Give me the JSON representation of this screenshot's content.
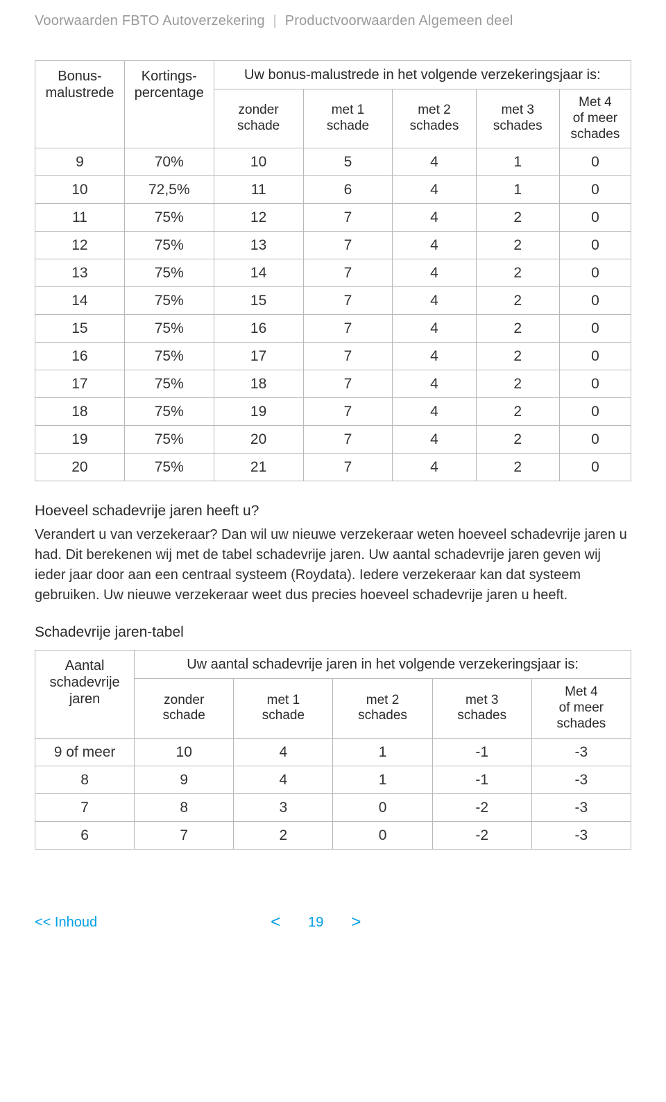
{
  "header": {
    "left": "Voorwaarden FBTO Autoverzekering",
    "right": "Productvoorwaarden Algemeen deel"
  },
  "table1": {
    "columns_row1": {
      "col1": "Bonus-\nmalustrede",
      "col2": "Kortings-\npercentage",
      "col_span": "Uw bonus-malustrede in het volgende verzekeringsjaar is:"
    },
    "columns_row2": {
      "c3": "zonder\nschade",
      "c4": "met 1\nschade",
      "c5": "met 2\nschades",
      "c6": "met 3\nschades",
      "c7": "Met 4\nof meer\nschades"
    },
    "rows": [
      [
        "9",
        "70%",
        "10",
        "5",
        "4",
        "1",
        "0"
      ],
      [
        "10",
        "72,5%",
        "11",
        "6",
        "4",
        "1",
        "0"
      ],
      [
        "11",
        "75%",
        "12",
        "7",
        "4",
        "2",
        "0"
      ],
      [
        "12",
        "75%",
        "13",
        "7",
        "4",
        "2",
        "0"
      ],
      [
        "13",
        "75%",
        "14",
        "7",
        "4",
        "2",
        "0"
      ],
      [
        "14",
        "75%",
        "15",
        "7",
        "4",
        "2",
        "0"
      ],
      [
        "15",
        "75%",
        "16",
        "7",
        "4",
        "2",
        "0"
      ],
      [
        "16",
        "75%",
        "17",
        "7",
        "4",
        "2",
        "0"
      ],
      [
        "17",
        "75%",
        "18",
        "7",
        "4",
        "2",
        "0"
      ],
      [
        "18",
        "75%",
        "19",
        "7",
        "4",
        "2",
        "0"
      ],
      [
        "19",
        "75%",
        "20",
        "7",
        "4",
        "2",
        "0"
      ],
      [
        "20",
        "75%",
        "21",
        "7",
        "4",
        "2",
        "0"
      ]
    ]
  },
  "section": {
    "heading": "Hoeveel schadevrije jaren heeft u?",
    "body": "Verandert u van verzekeraar? Dan wil uw nieuwe verzekeraar weten hoeveel schadevrije jaren u had. Dit berekenen wij met de tabel schadevrije jaren. Uw aantal schadevrije jaren geven wij ieder jaar door aan een centraal systeem (Roydata). Iedere verzekeraar kan dat systeem gebruiken. Uw nieuwe verzekeraar weet dus precies hoeveel schadevrije jaren u heeft."
  },
  "sub_heading": "Schadevrije jaren-tabel",
  "table2": {
    "columns_row1": {
      "col1": "Aantal\nschadevrije\njaren",
      "col_span": "Uw aantal schadevrije jaren in het volgende verzekeringsjaar is:"
    },
    "columns_row2": {
      "c2": "zonder\nschade",
      "c3": "met 1\nschade",
      "c4": "met 2\nschades",
      "c5": "met 3\nschades",
      "c6": "Met 4\nof meer\nschades"
    },
    "rows": [
      [
        "9 of meer",
        "10",
        "4",
        "1",
        "-1",
        "-3"
      ],
      [
        "8",
        "9",
        "4",
        "1",
        "-1",
        "-3"
      ],
      [
        "7",
        "8",
        "3",
        "0",
        "-2",
        "-3"
      ],
      [
        "6",
        "7",
        "2",
        "0",
        "-2",
        "-3"
      ]
    ]
  },
  "footer": {
    "inhoud": "<< Inhoud",
    "prev": "<",
    "page": "19",
    "next": ">"
  },
  "colors": {
    "link": "#009fe3",
    "header_grey": "#9a9a9a",
    "border": "#b8b8b8",
    "text": "#333333"
  }
}
